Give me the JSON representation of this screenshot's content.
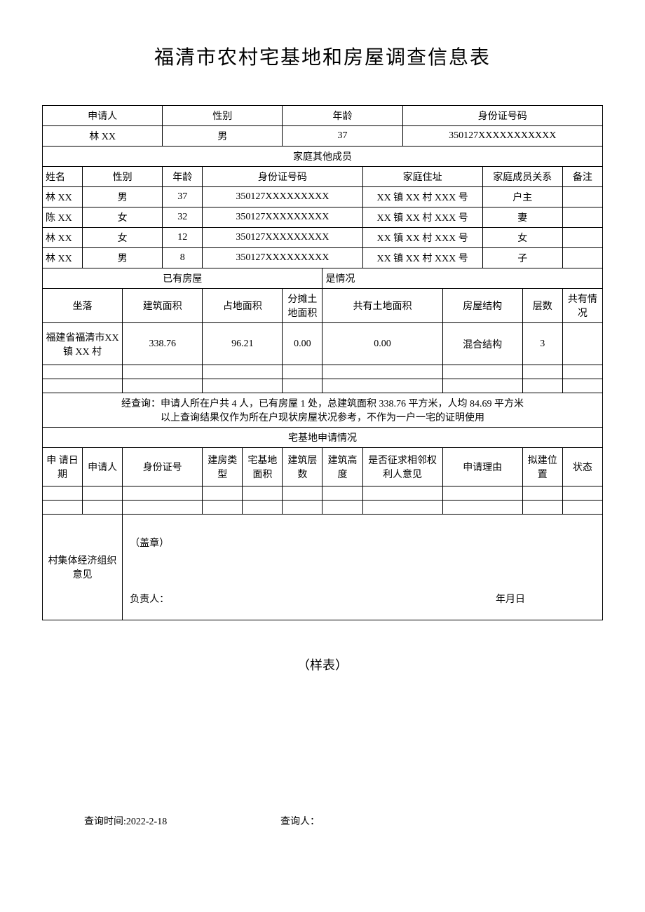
{
  "title": "福清市农村宅基地和房屋调查信息表",
  "applicant_header": {
    "col1": "申请人",
    "col2": "性别",
    "col3": "年龄",
    "col4": "身份证号码"
  },
  "applicant": {
    "name": "林 XX",
    "gender": "男",
    "age": "37",
    "id_number": "350127XXXXXXXXXXX"
  },
  "family_section_title": "家庭其他成员",
  "family_header": {
    "name": "姓名",
    "gender": "性别",
    "age": "年龄",
    "id": "身份证号码",
    "address": "家庭住址",
    "relation": "家庭成员关系",
    "remark": "备注"
  },
  "family_members": [
    {
      "name": "林 XX",
      "gender": "男",
      "age": "37",
      "id": "350127XXXXXXXXX",
      "address": "XX 镇 XX 村 XXX 号",
      "relation": "户主",
      "remark": ""
    },
    {
      "name": "陈 XX",
      "gender": "女",
      "age": "32",
      "id": "350127XXXXXXXXX",
      "address": "XX 镇 XX 村 XXX 号",
      "relation": "妻",
      "remark": ""
    },
    {
      "name": "林 XX",
      "gender": "女",
      "age": "12",
      "id": "350127XXXXXXXXX",
      "address": "XX 镇 XX 村 XXX 号",
      "relation": "女",
      "remark": ""
    },
    {
      "name": "林 XX",
      "gender": "男",
      "age": "8",
      "id": "350127XXXXXXXXX",
      "address": "XX 镇 XX 村 XXX 号",
      "relation": "子",
      "remark": ""
    }
  ],
  "housing_section": {
    "left_label": "已有房屋",
    "right_label": "是情况"
  },
  "housing_header": {
    "location": "坐落",
    "building_area": "建筑面积",
    "land_area": "占地面积",
    "shared_land": "分摊土地面积",
    "common_land": "共有土地面积",
    "structure": "房屋结构",
    "floors": "层数",
    "shared_status": "共有情况"
  },
  "housing_data": {
    "location": "福建省福清市XX 镇 XX 村",
    "building_area": "338.76",
    "land_area": "96.21",
    "shared_land": "0.00",
    "common_land": "0.00",
    "structure": "混合结构",
    "floors": "3",
    "shared_status": ""
  },
  "query_summary": {
    "line1": "经查询：申请人所在户共 4 人，已有房屋 1 处，总建筑面积 338.76 平方米，人均 84.69 平方米",
    "line2": "以上查询结果仅作为所在户现状房屋状况参考，不作为一户一宅的证明使用"
  },
  "application_section_title": "宅基地申请情况",
  "application_header": {
    "date": "申 请日期",
    "applicant": "申请人",
    "id": "身份证号",
    "house_type": "建房类型",
    "land_area": "宅基地面积",
    "floors": "建筑层数",
    "height": "建筑高度",
    "neighbor": "是否征求相邻权利人意见",
    "reason": "申请理由",
    "location": "拟建位置",
    "status": "状态"
  },
  "committee": {
    "label": "村集体经济组织意见",
    "stamp": "（盖章）",
    "responsible": "负责人：",
    "date": "年月日"
  },
  "sample_label": "（样表）",
  "footer": {
    "query_time_label": "查询时间:",
    "query_time": "2022-2-18",
    "query_person_label": "查询人："
  }
}
